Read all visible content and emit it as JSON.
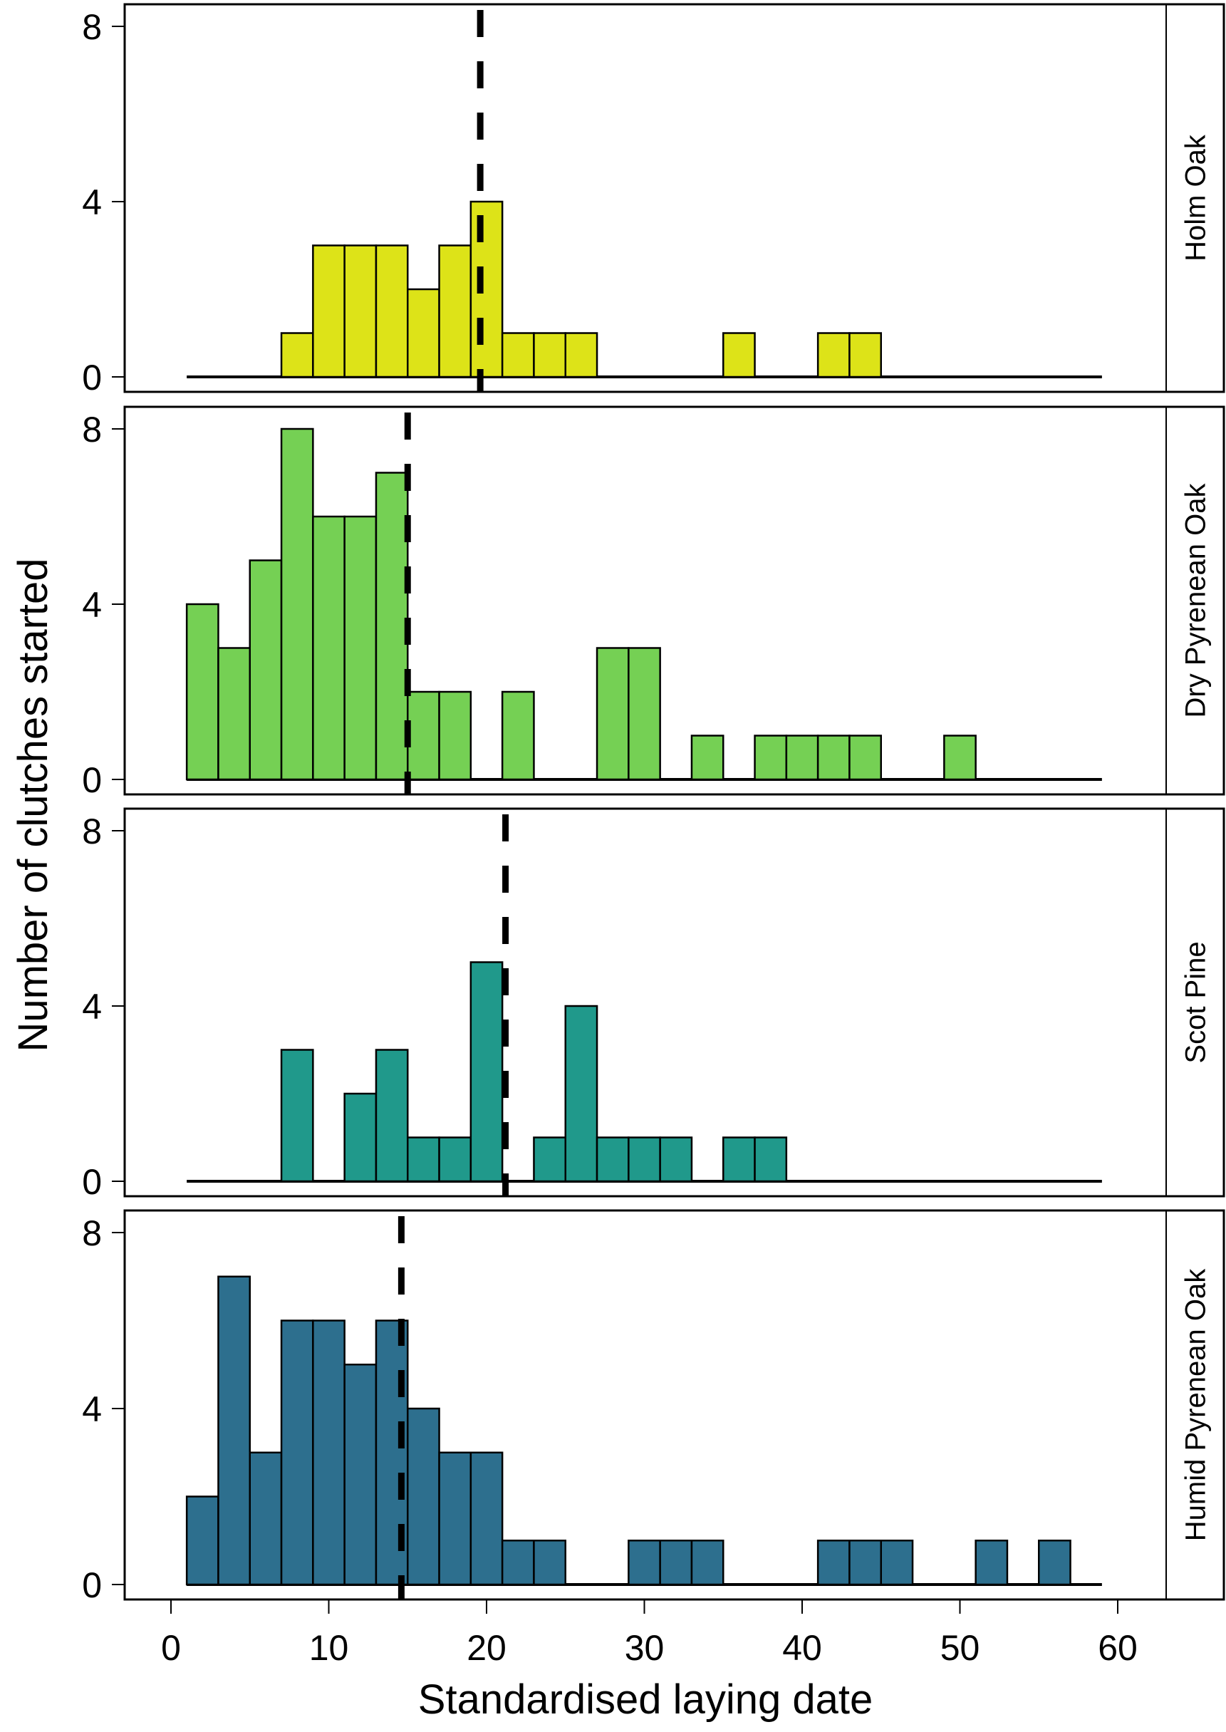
{
  "chart_data": {
    "type": "bar",
    "subtype": "faceted-histogram",
    "xlabel": "Standardised laying date",
    "ylabel": "Number of clutches started",
    "xlim": [
      -4,
      63
    ],
    "ylim": [
      -0.7,
      8.7
    ],
    "x_ticks": [
      0,
      10,
      20,
      30,
      40,
      50,
      60
    ],
    "y_ticks": [
      0,
      4,
      8
    ],
    "bin_width": 2,
    "bin_range": [
      1,
      59
    ],
    "bin_starts": [
      1,
      3,
      5,
      7,
      9,
      11,
      13,
      15,
      17,
      19,
      21,
      23,
      25,
      27,
      29,
      31,
      33,
      35,
      37,
      39,
      41,
      43,
      45,
      47,
      49,
      51,
      53,
      55,
      57
    ],
    "mean_line_style": "dashed",
    "series": [
      {
        "name": "Holm Oak",
        "color": "#DDE318",
        "mean": 19.6,
        "values": [
          0,
          0,
          0,
          1,
          3,
          3,
          3,
          2,
          3,
          4,
          1,
          1,
          1,
          0,
          0,
          0,
          0,
          1,
          0,
          0,
          1,
          1,
          0,
          0,
          0,
          0,
          0,
          0,
          0
        ]
      },
      {
        "name": "Dry Pyrenean Oak",
        "color": "#75D054",
        "mean": 15.0,
        "values": [
          4,
          3,
          5,
          8,
          6,
          6,
          7,
          2,
          2,
          0,
          2,
          0,
          0,
          3,
          3,
          0,
          1,
          0,
          1,
          1,
          1,
          1,
          0,
          0,
          1,
          0,
          0,
          0,
          0
        ]
      },
      {
        "name": "Scot Pine",
        "color": "#20998B",
        "mean": 21.2,
        "values": [
          0,
          0,
          0,
          3,
          0,
          2,
          3,
          1,
          1,
          5,
          0,
          1,
          4,
          1,
          1,
          1,
          0,
          1,
          1,
          0,
          0,
          0,
          0,
          0,
          0,
          0,
          0,
          0,
          0
        ]
      },
      {
        "name": "Humid Pyrenean Oak",
        "color": "#2D6F8E",
        "mean": 14.6,
        "values": [
          2,
          7,
          3,
          6,
          6,
          5,
          6,
          4,
          3,
          3,
          1,
          1,
          0,
          0,
          1,
          1,
          1,
          0,
          0,
          0,
          1,
          1,
          1,
          0,
          0,
          1,
          0,
          1,
          0
        ]
      }
    ]
  }
}
